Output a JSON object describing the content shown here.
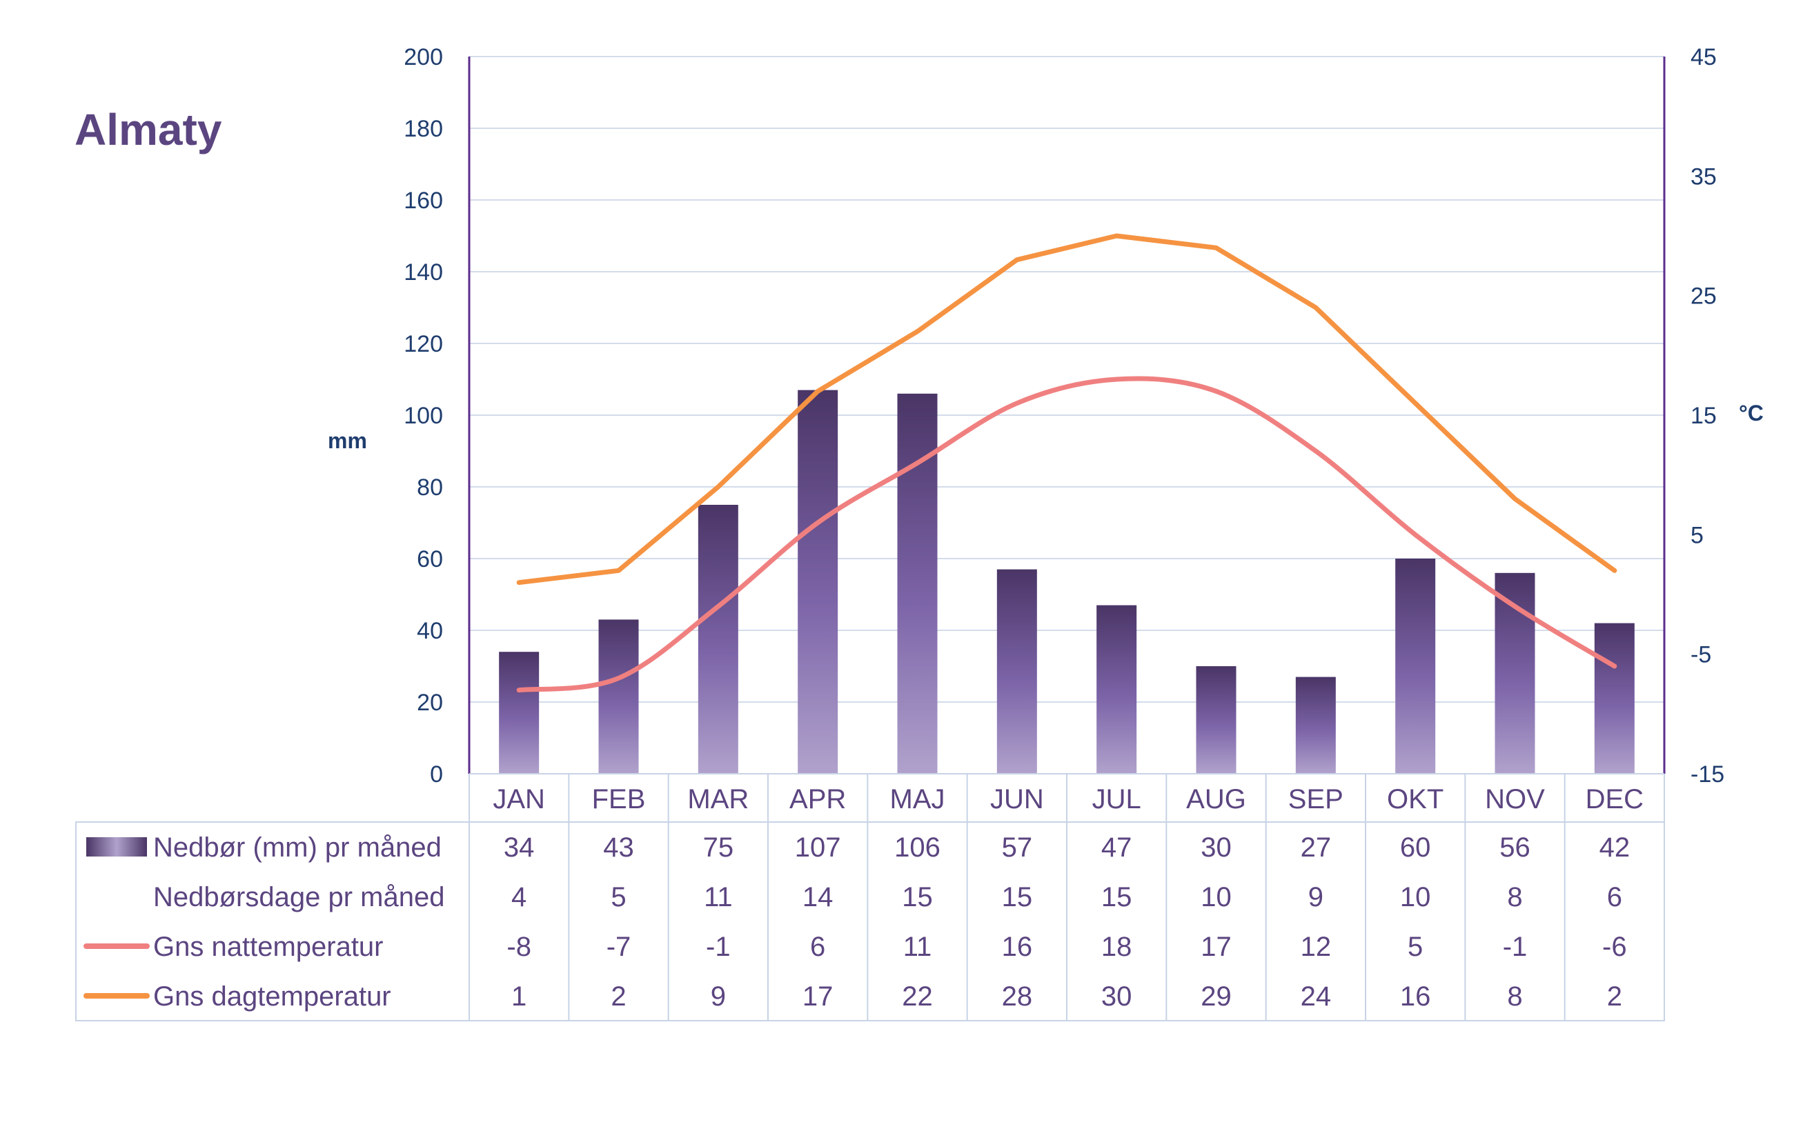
{
  "chart_data": {
    "type": "bar",
    "title": "Almaty",
    "categories": [
      "JAN",
      "FEB",
      "MAR",
      "APR",
      "MAJ",
      "JUN",
      "JUL",
      "AUG",
      "SEP",
      "OKT",
      "NOV",
      "DEC"
    ],
    "y_left": {
      "label": "mm",
      "lim": [
        0,
        200
      ],
      "ticks": [
        0,
        20,
        40,
        60,
        80,
        100,
        120,
        140,
        160,
        180,
        200
      ]
    },
    "y_right": {
      "label": "°C",
      "lim": [
        -15,
        45
      ],
      "ticks": [
        -15,
        -5,
        5,
        15,
        25,
        35,
        45
      ]
    },
    "grid": true,
    "series": [
      {
        "name": "Nedbør (mm) pr måned",
        "kind": "bar",
        "axis": "left",
        "values": [
          34,
          43,
          75,
          107,
          106,
          57,
          47,
          30,
          27,
          60,
          56,
          42
        ]
      },
      {
        "name": "Nedbørsdage pr måned",
        "kind": "table",
        "values": [
          4,
          5,
          11,
          14,
          15,
          15,
          15,
          10,
          9,
          10,
          8,
          6
        ]
      },
      {
        "name": "Gns nattemperatur",
        "kind": "line",
        "axis": "right",
        "color": "#f08080",
        "values": [
          -8,
          -7,
          -1,
          6,
          11,
          16,
          18,
          17,
          12,
          5,
          -1,
          -6
        ]
      },
      {
        "name": "Gns dagtemperatur",
        "kind": "line",
        "axis": "right",
        "color": "#f59342",
        "values": [
          1,
          2,
          9,
          17,
          22,
          28,
          30,
          29,
          24,
          16,
          8,
          2
        ]
      }
    ],
    "colors": {
      "bar_top": "#4a3566",
      "bar_bottom": "#a493c4",
      "axis": "#5b2d8c",
      "grid": "#d3dceb",
      "table_border": "#c8d3e6",
      "text": "#5b4580",
      "tick_text": "#1f3d6e"
    }
  }
}
